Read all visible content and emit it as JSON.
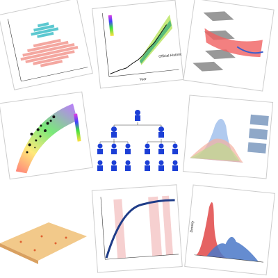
{
  "panels": {
    "gdp": {
      "x_label": "Year",
      "legend": "Official Historic"
    },
    "density": {
      "y_label": "Density"
    }
  }
}
